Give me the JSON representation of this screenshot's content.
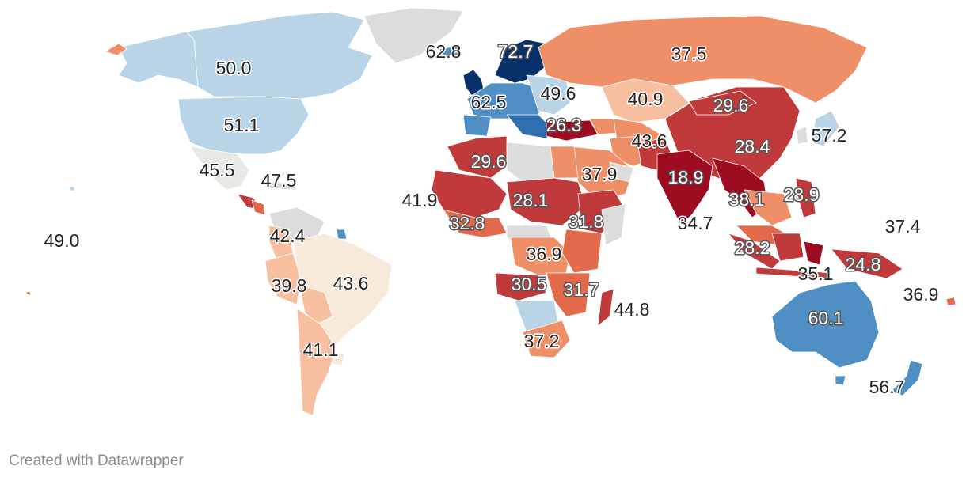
{
  "credit": "Created with Datawrapper",
  "colors": {
    "darkblue": "#08306b",
    "midblue": "#2e6fb0",
    "blue": "#4f8fc4",
    "lightblue": "#b9d4e7",
    "paleblue": "#cfe1ee",
    "cream": "#f7eadb",
    "peach": "#f7bfa0",
    "salmon": "#ef8f68",
    "orange": "#e26a4a",
    "red": "#c0393b",
    "darkred": "#9e0c22",
    "nodata": "#dcdcdc"
  },
  "labels": [
    {
      "name": "canada",
      "text": "50.0"
    },
    {
      "name": "usa",
      "text": "51.1"
    },
    {
      "name": "mexico",
      "text": "45.5"
    },
    {
      "name": "caribbean",
      "text": "47.5"
    },
    {
      "name": "pacific-hawaii",
      "text": "49.0"
    },
    {
      "name": "colombia",
      "text": "42.4"
    },
    {
      "name": "peru",
      "text": "39.8"
    },
    {
      "name": "brazil",
      "text": "43.6"
    },
    {
      "name": "argentina",
      "text": "41.1"
    },
    {
      "name": "iceland",
      "text": "62.8"
    },
    {
      "name": "scandinavia",
      "text": "72.7"
    },
    {
      "name": "western-europe",
      "text": "62.5"
    },
    {
      "name": "eastern-europe",
      "text": "49.6"
    },
    {
      "name": "turkey",
      "text": "26.3"
    },
    {
      "name": "russia",
      "text": "37.5"
    },
    {
      "name": "kazakhstan",
      "text": "40.9"
    },
    {
      "name": "china",
      "text": "29.6"
    },
    {
      "name": "china-east",
      "text": "28.4"
    },
    {
      "name": "japan",
      "text": "57.2"
    },
    {
      "name": "central-asia",
      "text": "43.6"
    },
    {
      "name": "saudi-arabia",
      "text": "37.9"
    },
    {
      "name": "india",
      "text": "18.9"
    },
    {
      "name": "sri-lanka-area",
      "text": "34.7"
    },
    {
      "name": "southeast-asia",
      "text": "38.1"
    },
    {
      "name": "philippines",
      "text": "28.9"
    },
    {
      "name": "malaysia",
      "text": "28.2"
    },
    {
      "name": "indonesia",
      "text": "35.1"
    },
    {
      "name": "papua",
      "text": "24.8"
    },
    {
      "name": "pacific-micronesia",
      "text": "37.4"
    },
    {
      "name": "pacific-fiji",
      "text": "36.9"
    },
    {
      "name": "australia",
      "text": "60.1"
    },
    {
      "name": "new-zealand",
      "text": "56.7"
    },
    {
      "name": "west-africa-sahel",
      "text": "29.6"
    },
    {
      "name": "senegal",
      "text": "41.9"
    },
    {
      "name": "west-africa-coast",
      "text": "32.8"
    },
    {
      "name": "chad",
      "text": "28.1"
    },
    {
      "name": "east-africa",
      "text": "31.8"
    },
    {
      "name": "congo",
      "text": "36.9"
    },
    {
      "name": "angola",
      "text": "30.5"
    },
    {
      "name": "mozambique",
      "text": "31.7"
    },
    {
      "name": "madagascar",
      "text": "44.8"
    },
    {
      "name": "south-africa",
      "text": "37.2"
    }
  ]
}
